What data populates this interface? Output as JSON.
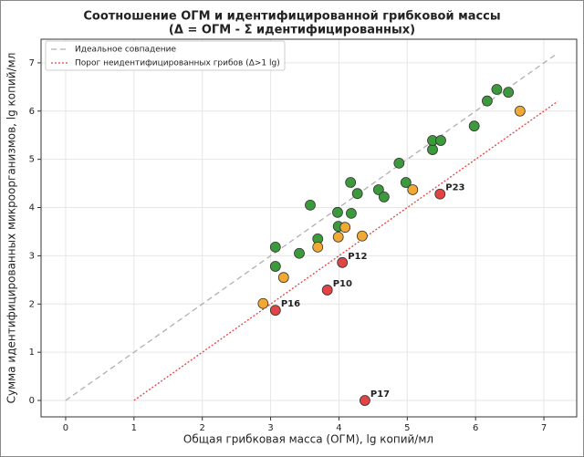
{
  "chart_data": {
    "type": "scatter",
    "title": [
      "Соотношение ОГМ и идентифицированной грибковой массы",
      "(Δ = ОГМ - Σ идентифицированных)"
    ],
    "x_label": "Общая грибковая масса (ОГМ), lg копий/мл",
    "y_label": "Сумма идентифицированных микроорганизмов, lg копий/мл",
    "xlim": [
      -0.36,
      7.48
    ],
    "ylim": [
      -0.34,
      7.49
    ],
    "xticks": [
      0,
      1,
      2,
      3,
      4,
      5,
      6,
      7
    ],
    "yticks": [
      0,
      1,
      2,
      3,
      4,
      5,
      6,
      7
    ],
    "grid": true,
    "legend": "upper left",
    "lines": [
      {
        "name": "Идеальное совпадение",
        "color": "#b0b0b0",
        "style": "dashed",
        "x": [
          0,
          7.2
        ],
        "values": [
          0,
          7.2
        ]
      },
      {
        "name": "Порог неидентифицированных грибов (Δ>1 lg)",
        "color": "#e84040",
        "style": "dotted",
        "x": [
          1,
          7.2
        ],
        "values": [
          0,
          6.2
        ]
      }
    ],
    "series": [
      {
        "color": "#3c9a3c",
        "x": [
          3.07,
          3.07,
          3.42,
          3.58,
          3.69,
          4.17,
          3.98,
          3.99,
          4.18,
          4.27,
          4.58,
          4.66,
          4.88,
          4.98,
          5.37,
          5.37,
          5.49,
          5.98,
          6.17,
          6.31,
          6.48
        ],
        "values": [
          3.18,
          2.78,
          3.05,
          4.05,
          3.35,
          4.52,
          3.9,
          3.61,
          3.88,
          4.29,
          4.37,
          4.22,
          4.92,
          4.52,
          5.2,
          5.39,
          5.39,
          5.69,
          6.21,
          6.45,
          6.39
        ]
      },
      {
        "color": "#f0a935",
        "x": [
          2.89,
          3.19,
          3.69,
          3.99,
          4.09,
          4.34,
          5.08,
          6.65
        ],
        "values": [
          2.01,
          2.55,
          3.18,
          3.39,
          3.59,
          3.41,
          4.37,
          6.0
        ]
      },
      {
        "color": "#e04444",
        "x": [
          3.07,
          3.83,
          4.05,
          5.48,
          4.38
        ],
        "values": [
          1.87,
          2.29,
          2.86,
          4.28,
          0
        ],
        "labels": [
          "P16",
          "P10",
          "P12",
          "P23",
          "P17"
        ]
      }
    ]
  }
}
